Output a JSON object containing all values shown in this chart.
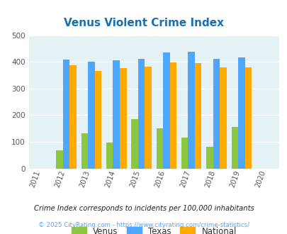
{
  "title": "Venus Violent Crime Index",
  "all_years": [
    2011,
    2012,
    2013,
    2014,
    2015,
    2016,
    2017,
    2018,
    2019,
    2020
  ],
  "plot_years": [
    2012,
    2013,
    2014,
    2015,
    2016,
    2017,
    2018,
    2019
  ],
  "venus": [
    68,
    133,
    96,
    186,
    151,
    116,
    82,
    155
  ],
  "texas": [
    408,
    400,
    405,
    411,
    435,
    438,
    411,
    417
  ],
  "national": [
    387,
    367,
    376,
    383,
    397,
    394,
    380,
    380
  ],
  "venus_color": "#8dc63f",
  "texas_color": "#4da6ff",
  "national_color": "#ffaa00",
  "bg_color": "#e5f2f5",
  "title_color": "#1a6fad",
  "ylabel_max": 500,
  "yticks": [
    0,
    100,
    200,
    300,
    400,
    500
  ],
  "legend_labels": [
    "Venus",
    "Texas",
    "National"
  ],
  "legend_text_color": "#333333",
  "footnote1": "Crime Index corresponds to incidents per 100,000 inhabitants",
  "footnote2": "© 2025 CityRating.com - https://www.cityrating.com/crime-statistics/",
  "footnote1_color": "#222222",
  "footnote2_color": "#4da6ff"
}
